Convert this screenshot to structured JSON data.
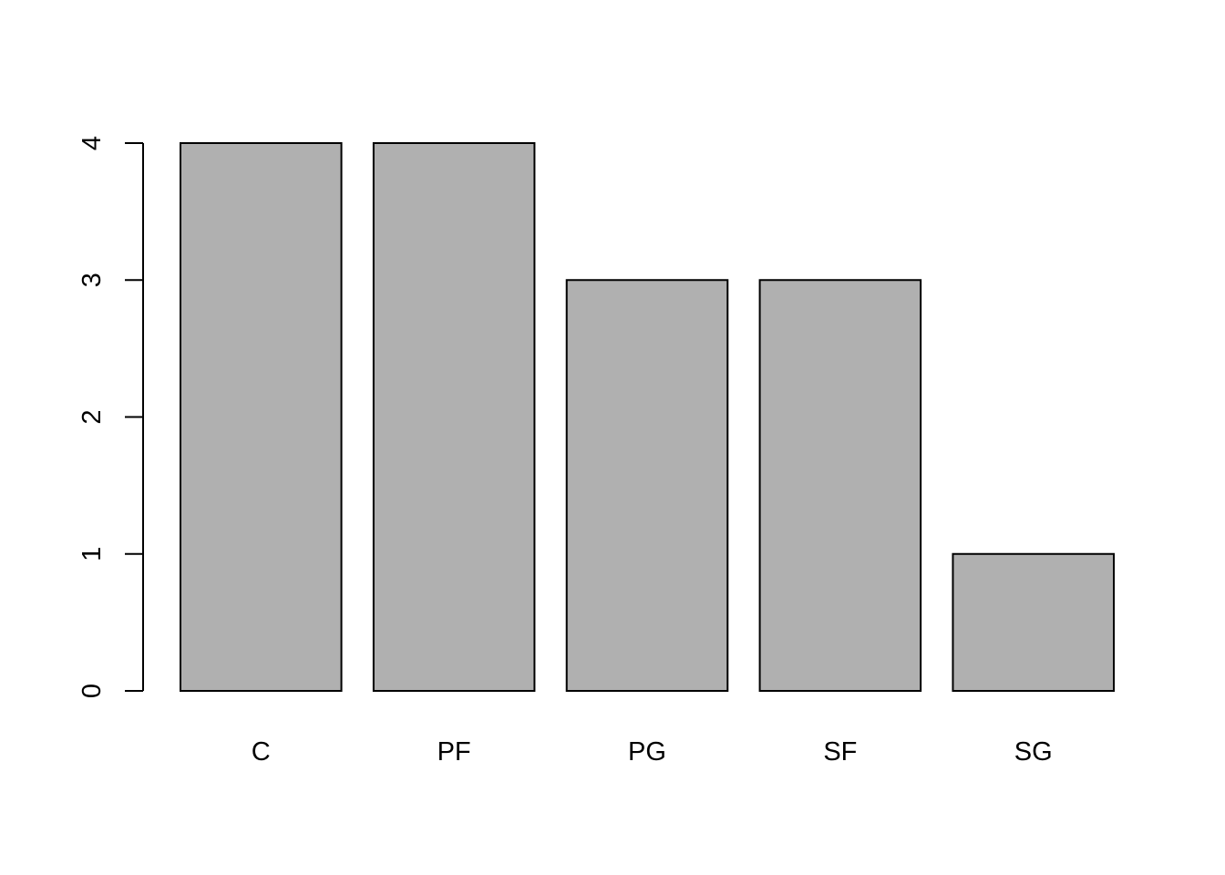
{
  "chart_data": {
    "type": "bar",
    "categories": [
      "C",
      "PF",
      "PG",
      "SF",
      "SG"
    ],
    "values": [
      4,
      4,
      3,
      3,
      1
    ],
    "ylim": [
      0,
      4
    ],
    "yticks": [
      0,
      1,
      2,
      3,
      4
    ],
    "title": "",
    "xlabel": "",
    "ylabel": "",
    "grid": false,
    "bar_fill": "#b0b0b0",
    "bar_stroke": "#000000"
  }
}
